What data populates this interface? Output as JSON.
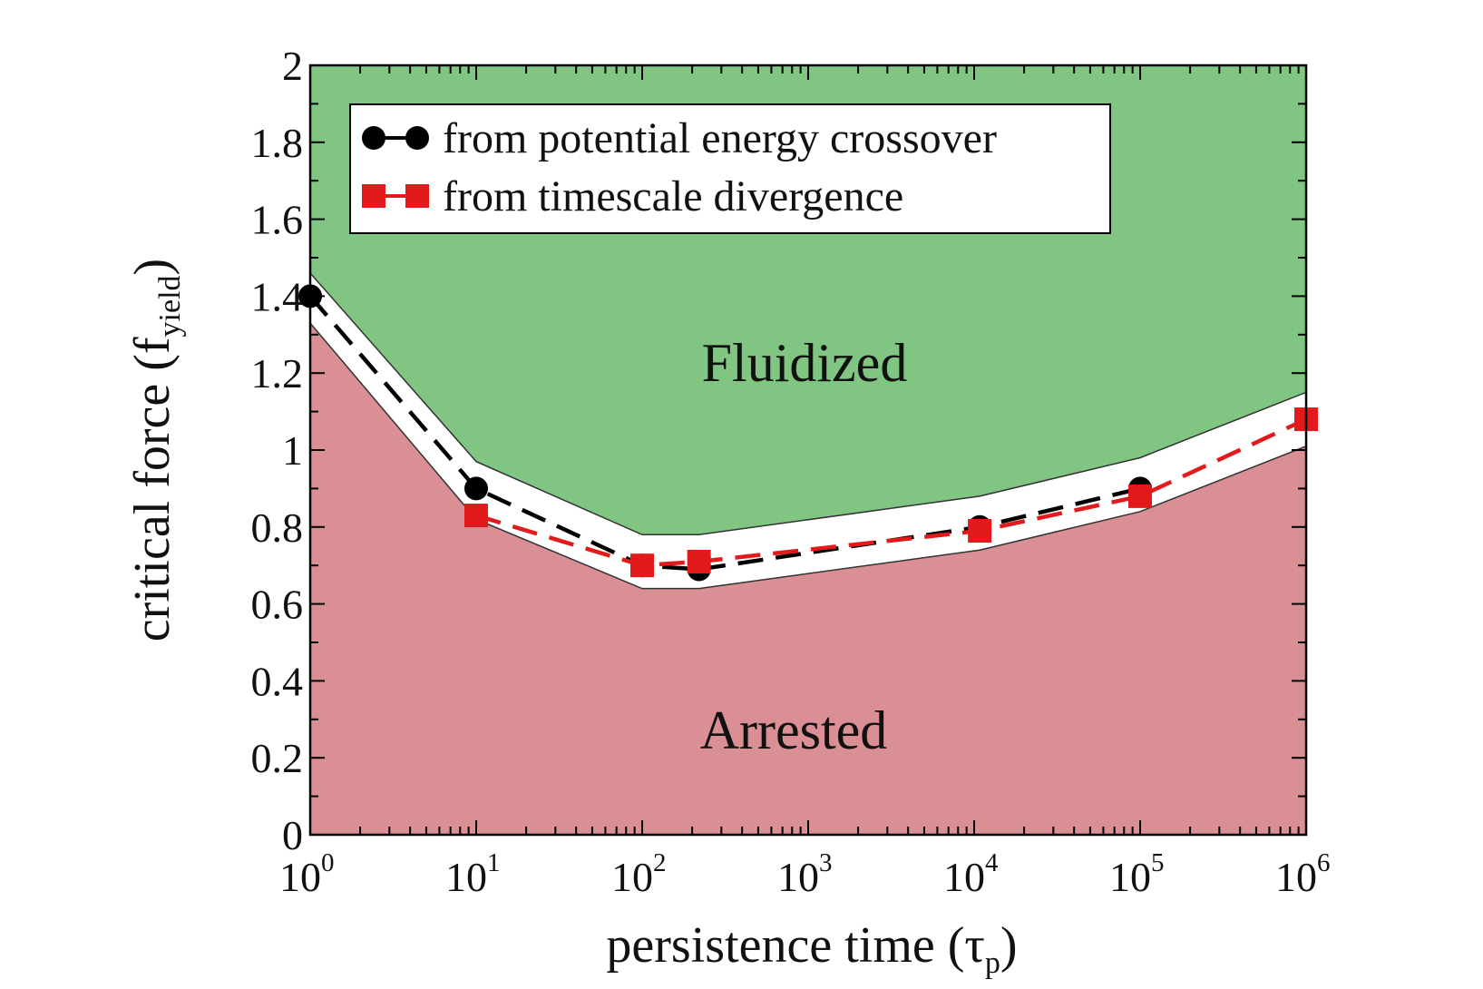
{
  "chart_data": {
    "type": "line",
    "title": "",
    "xlabel": "persistence time",
    "xlabel_symbol": "τ",
    "xlabel_subscript": "p",
    "ylabel": "critical force",
    "ylabel_symbol": "f",
    "ylabel_subscript": "yield",
    "xscale": "log",
    "xlim": [
      1,
      1000000
    ],
    "ylim": [
      0,
      2
    ],
    "ytick_labels": [
      "0",
      "0.2",
      "0.4",
      "0.6",
      "0.8",
      "1",
      "1.2",
      "1.4",
      "1.6",
      "1.8",
      "2"
    ],
    "ytick_values": [
      0,
      0.2,
      0.4,
      0.6,
      0.8,
      1.0,
      1.2,
      1.4,
      1.6,
      1.8,
      2.0
    ],
    "xtick_base": "10",
    "xtick_exponents": [
      "0",
      "1",
      "2",
      "3",
      "4",
      "5",
      "6"
    ],
    "xtick_values": [
      1,
      10,
      100,
      1000,
      10000,
      100000,
      1000000
    ],
    "legend_position": "top-left",
    "series": [
      {
        "name": "from potential energy crossover",
        "color": "#000000",
        "marker": "circle",
        "linestyle": "dashed",
        "x": [
          1,
          10,
          100,
          220,
          10800,
          100000
        ],
        "y": [
          1.4,
          0.9,
          0.7,
          0.69,
          0.8,
          0.9
        ]
      },
      {
        "name": "from timescale divergence",
        "color": "#e31a1c",
        "marker": "square",
        "linestyle": "dashed",
        "x": [
          10,
          100,
          220,
          10800,
          100000,
          1000000
        ],
        "y": [
          0.83,
          0.7,
          0.71,
          0.79,
          0.88,
          1.08
        ]
      }
    ],
    "regions": [
      {
        "name": "Fluidized",
        "color": "#80c581",
        "boundary_x": [
          1,
          10,
          100,
          220,
          10800,
          100000,
          1000000
        ],
        "boundary_y": [
          1.46,
          0.97,
          0.78,
          0.78,
          0.88,
          0.98,
          1.15
        ]
      },
      {
        "name": "Arrested",
        "color": "#d98f93",
        "boundary_x": [
          1,
          10,
          100,
          220,
          10800,
          100000,
          1000000
        ],
        "boundary_y": [
          1.33,
          0.82,
          0.64,
          0.64,
          0.74,
          0.84,
          1.01
        ]
      }
    ]
  }
}
